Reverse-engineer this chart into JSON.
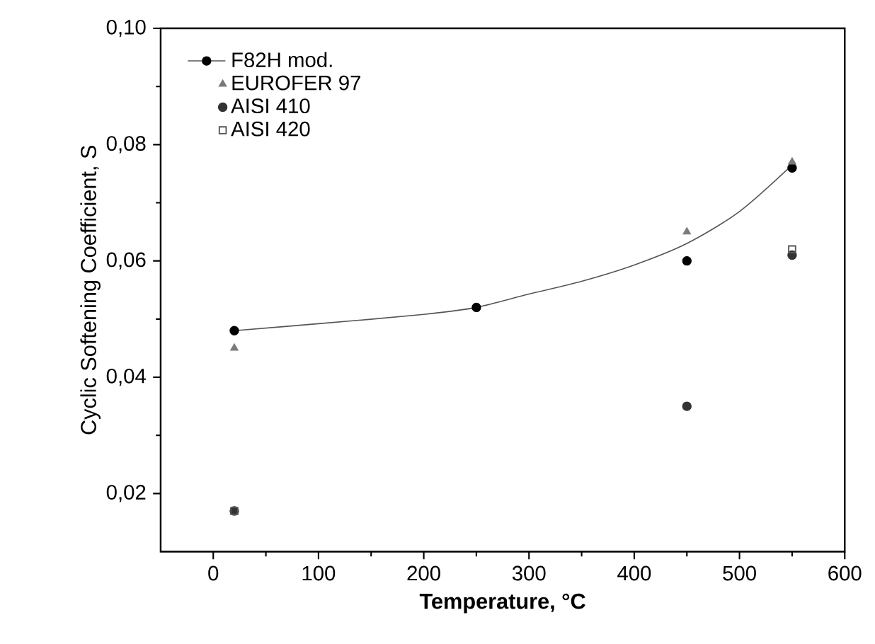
{
  "chart_data": {
    "type": "scatter",
    "xlabel": "Temperature, °C",
    "ylabel": "Cyclic Softening Coefficient, S",
    "xlim": [
      -50,
      600
    ],
    "xticks": [
      0,
      100,
      200,
      300,
      400,
      500,
      600
    ],
    "ylim": [
      0.01,
      0.1
    ],
    "yticks": [
      {
        "value": 0.02,
        "label": "0,02"
      },
      {
        "value": 0.04,
        "label": "0,04"
      },
      {
        "value": 0.06,
        "label": "0,06"
      },
      {
        "value": 0.08,
        "label": "0,08"
      },
      {
        "value": 0.1,
        "label": "0,10"
      }
    ],
    "legend": "top left",
    "series": [
      {
        "name": "F82H mod.",
        "color": "#000000",
        "marker": "circle",
        "x": [
          20,
          250,
          450,
          550
        ],
        "values": [
          0.048,
          0.052,
          0.06,
          0.076
        ]
      },
      {
        "type": "line",
        "color": "#555555",
        "marker": "none",
        "x": [
          20,
          100,
          200,
          250,
          300,
          350,
          400,
          450,
          500,
          550
        ],
        "values": [
          0.048,
          0.0492,
          0.0508,
          0.052,
          0.0543,
          0.0565,
          0.0593,
          0.063,
          0.0685,
          0.0765
        ]
      },
      {
        "name": "EUROFER 97",
        "color": "#7a7a7a",
        "marker": "triangle",
        "x": [
          20,
          450,
          550
        ],
        "values": [
          0.045,
          0.065,
          0.077
        ]
      },
      {
        "name": "AISI 410",
        "color": "#333333",
        "marker": "circle",
        "x": [
          20,
          450,
          550
        ],
        "values": [
          0.017,
          0.035,
          0.061
        ]
      },
      {
        "name": "AISI 420",
        "color": "#555555",
        "marker": "square",
        "x": [
          20,
          550
        ],
        "values": [
          0.017,
          0.062
        ]
      }
    ]
  }
}
